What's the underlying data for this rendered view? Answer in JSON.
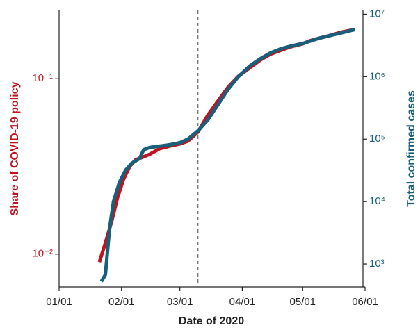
{
  "chart_data": {
    "type": "line",
    "xlabel": "Date of 2020",
    "ylabel": "Share of COVID-19 policy",
    "y2label": "Total confirmed cases",
    "xlim": [
      "01/01",
      "06/01"
    ],
    "xticks": [
      "01/01",
      "02/01",
      "03/01",
      "04/01",
      "05/01",
      "06/01"
    ],
    "ylim": [
      0.0065,
      0.245
    ],
    "yticks": [
      {
        "value": 0.01,
        "label": "10⁻²"
      },
      {
        "value": 0.1,
        "label": "10⁻¹"
      }
    ],
    "y2lim": [
      430,
      11500000
    ],
    "y2ticks": [
      {
        "value": 1000,
        "label": "10³"
      },
      {
        "value": 10000,
        "label": "10⁴"
      },
      {
        "value": 100000,
        "label": "10⁵"
      },
      {
        "value": 1000000,
        "label": "10⁶"
      },
      {
        "value": 10000000,
        "label": "10⁷"
      }
    ],
    "log_scale": true,
    "vline": "03/10",
    "series": [
      {
        "color": "#c0131f",
        "axis": "y",
        "x": [
          "01/21",
          "01/24",
          "01/27",
          "01/30",
          "02/02",
          "02/05",
          "02/08",
          "02/11",
          "02/15",
          "02/20",
          "02/25",
          "03/01",
          "03/05",
          "03/10",
          "03/15",
          "03/20",
          "03/25",
          "03/30",
          "04/05",
          "04/10",
          "04/15",
          "04/20",
          "04/25",
          "05/01",
          "05/05",
          "05/10",
          "05/15",
          "05/20",
          "05/27"
        ],
        "values": [
          0.009,
          0.0116,
          0.0152,
          0.0209,
          0.0267,
          0.0315,
          0.0345,
          0.0355,
          0.0371,
          0.0399,
          0.0413,
          0.0425,
          0.0441,
          0.0497,
          0.0622,
          0.0748,
          0.0897,
          0.103,
          0.116,
          0.128,
          0.138,
          0.145,
          0.152,
          0.158,
          0.165,
          0.171,
          0.177,
          0.184,
          0.191
        ]
      },
      {
        "color": "#1a5f7a",
        "axis": "y2",
        "x": [
          "01/22",
          "01/24",
          "01/26",
          "01/28",
          "01/31",
          "02/03",
          "02/06",
          "02/10",
          "02/12",
          "02/15",
          "02/20",
          "02/25",
          "03/01",
          "03/05",
          "03/10",
          "03/15",
          "03/20",
          "03/25",
          "03/30",
          "04/05",
          "04/10",
          "04/15",
          "04/20",
          "04/25",
          "05/01",
          "05/10",
          "05/20",
          "05/27"
        ],
        "values": [
          525,
          680,
          3600,
          10000,
          20400,
          31600,
          40800,
          49000,
          67700,
          73600,
          77400,
          81400,
          87700,
          100000,
          136000,
          205000,
          360000,
          631000,
          1000000,
          1510000,
          1940000,
          2400000,
          2780000,
          3080000,
          3400000,
          4200000,
          5000000,
          5700000
        ]
      }
    ]
  }
}
